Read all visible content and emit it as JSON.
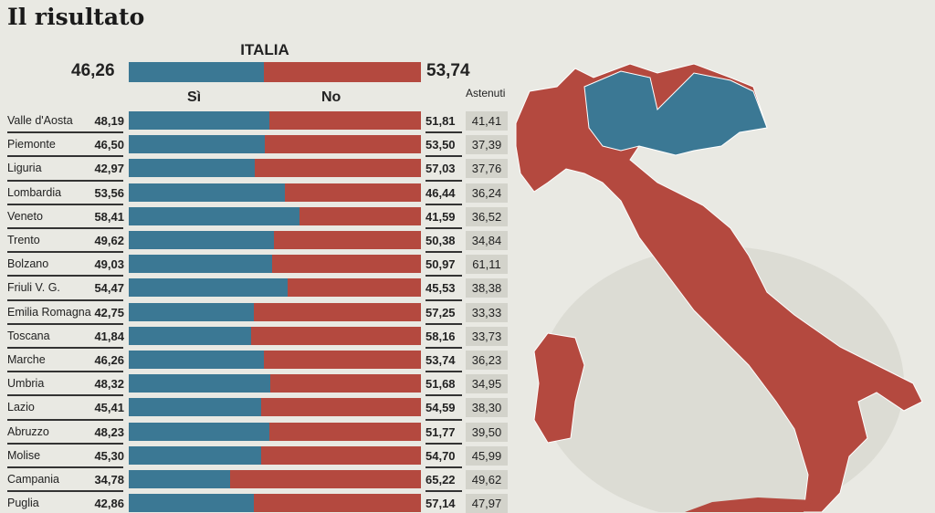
{
  "title": "Il risultato",
  "colors": {
    "si": "#3b7894",
    "no": "#b4493f",
    "background": "#e9e9e3"
  },
  "chart_data": {
    "type": "bar",
    "stacked": true,
    "orientation": "horizontal",
    "xlim": [
      0,
      100
    ],
    "national": {
      "label": "ITALIA",
      "si": "46,26",
      "no": "53,74",
      "si_value": 46.26,
      "no_value": 53.74
    },
    "headers": {
      "si": "Sì",
      "no": "No",
      "astenuti": "Astenuti"
    },
    "rows": [
      {
        "region": "Valle d'Aosta",
        "si": "48,19",
        "no": "51,81",
        "astenuti": "41,41",
        "si_value": 48.19
      },
      {
        "region": "Piemonte",
        "si": "46,50",
        "no": "53,50",
        "astenuti": "37,39",
        "si_value": 46.5
      },
      {
        "region": "Liguria",
        "si": "42,97",
        "no": "57,03",
        "astenuti": "37,76",
        "si_value": 42.97
      },
      {
        "region": "Lombardia",
        "si": "53,56",
        "no": "46,44",
        "astenuti": "36,24",
        "si_value": 53.56
      },
      {
        "region": "Veneto",
        "si": "58,41",
        "no": "41,59",
        "astenuti": "36,52",
        "si_value": 58.41
      },
      {
        "region": "Trento",
        "si": "49,62",
        "no": "50,38",
        "astenuti": "34,84",
        "si_value": 49.62
      },
      {
        "region": "Bolzano",
        "si": "49,03",
        "no": "50,97",
        "astenuti": "61,11",
        "si_value": 49.03
      },
      {
        "region": "Friuli V. G.",
        "si": "54,47",
        "no": "45,53",
        "astenuti": "38,38",
        "si_value": 54.47
      },
      {
        "region": "Emilia Romagna",
        "si": "42,75",
        "no": "57,25",
        "astenuti": "33,33",
        "si_value": 42.75
      },
      {
        "region": "Toscana",
        "si": "41,84",
        "no": "58,16",
        "astenuti": "33,73",
        "si_value": 41.84
      },
      {
        "region": "Marche",
        "si": "46,26",
        "no": "53,74",
        "astenuti": "36,23",
        "si_value": 46.26
      },
      {
        "region": "Umbria",
        "si": "48,32",
        "no": "51,68",
        "astenuti": "34,95",
        "si_value": 48.32
      },
      {
        "region": "Lazio",
        "si": "45,41",
        "no": "54,59",
        "astenuti": "38,30",
        "si_value": 45.41
      },
      {
        "region": "Abruzzo",
        "si": "48,23",
        "no": "51,77",
        "astenuti": "39,50",
        "si_value": 48.23
      },
      {
        "region": "Molise",
        "si": "45,30",
        "no": "54,70",
        "astenuti": "45,99",
        "si_value": 45.3
      },
      {
        "region": "Campania",
        "si": "34,78",
        "no": "65,22",
        "astenuti": "49,62",
        "si_value": 34.78
      },
      {
        "region": "Puglia",
        "si": "42,86",
        "no": "57,14",
        "astenuti": "47,97",
        "si_value": 42.86
      }
    ]
  }
}
